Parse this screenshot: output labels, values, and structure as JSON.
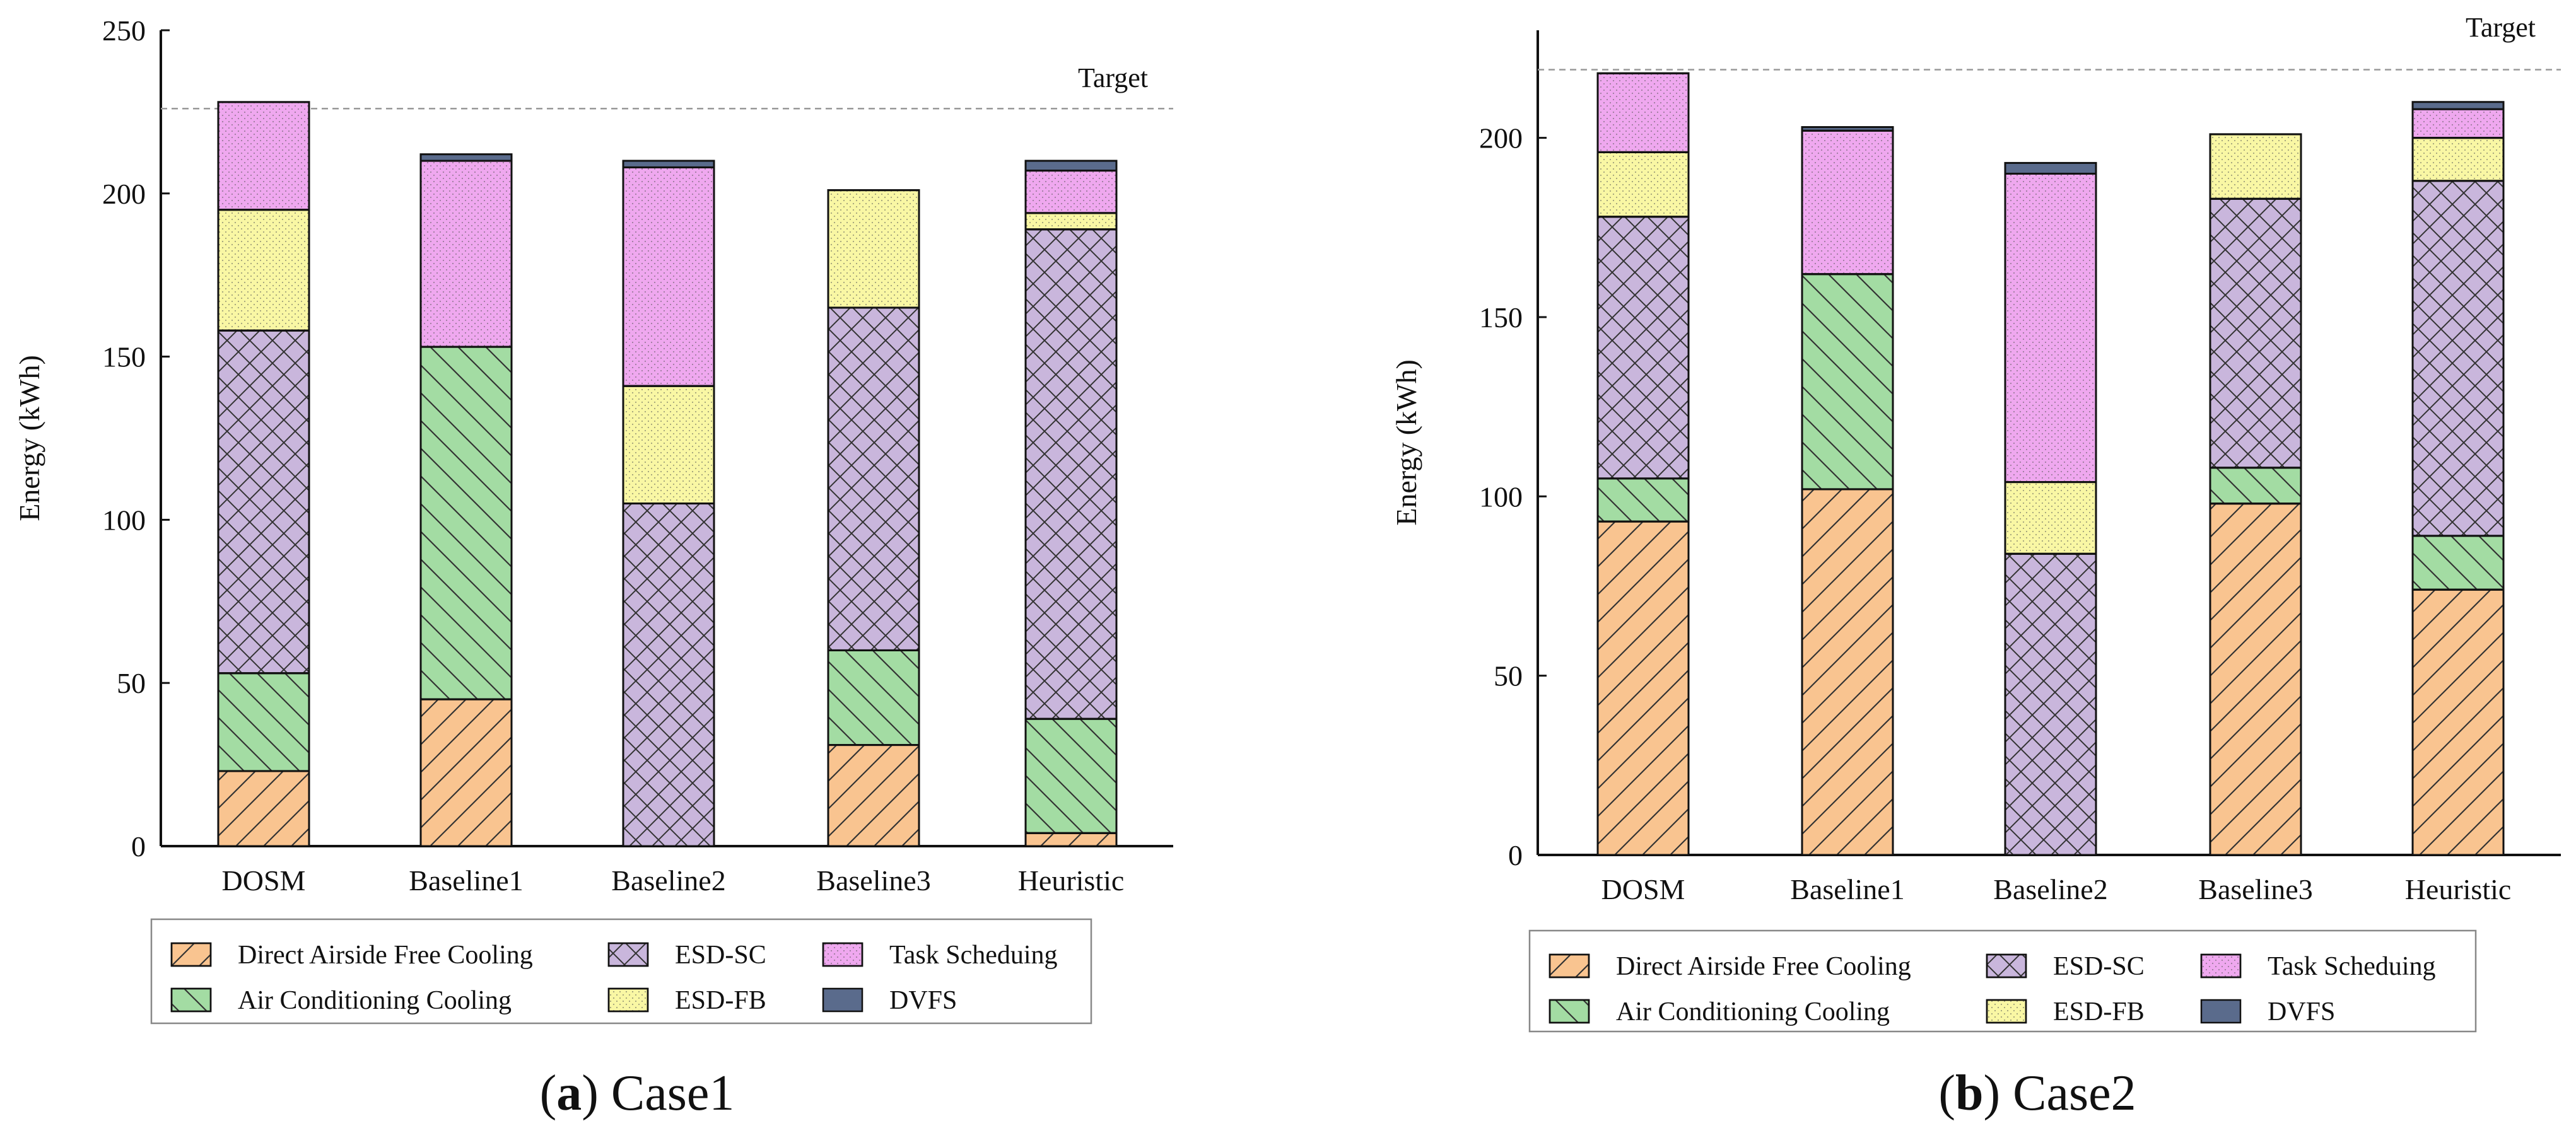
{
  "series_styles": [
    {
      "name": "Direct Airside Free Cooling",
      "color": "#F9C490",
      "pattern": "diag-right"
    },
    {
      "name": "Air Conditioning Cooling",
      "color": "#A3DCA3",
      "pattern": "diag-left"
    },
    {
      "name": "ESD-SC",
      "color": "#C9B6DC",
      "pattern": "crosshatch"
    },
    {
      "name": "ESD-FB",
      "color": "#F9F7A4",
      "pattern": "dots"
    },
    {
      "name": "Task Scheduing",
      "color": "#EFA8EF",
      "pattern": "dots"
    },
    {
      "name": "DVFS",
      "color": "#5A6B8C",
      "pattern": "none"
    }
  ],
  "chart_data": [
    {
      "type": "bar",
      "stacked": true,
      "caption_label": "a",
      "caption_text": "Case1",
      "ylabel": "Energy (kWh)",
      "xlabel": "",
      "ylim": [
        0,
        250
      ],
      "yticks": [
        0,
        50,
        100,
        150,
        200,
        250
      ],
      "target_value": 226,
      "target_label": "Target",
      "categories": [
        "DOSM",
        "Baseline1",
        "Baseline2",
        "Baseline3",
        "Heuristic"
      ],
      "series": [
        {
          "name": "Direct Airside Free Cooling",
          "values": [
            23,
            45,
            0,
            31,
            4
          ]
        },
        {
          "name": "Air Conditioning Cooling",
          "values": [
            30,
            108,
            0,
            29,
            35
          ]
        },
        {
          "name": "ESD-SC",
          "values": [
            105,
            0,
            105,
            105,
            150
          ]
        },
        {
          "name": "ESD-FB",
          "values": [
            37,
            0,
            36,
            36,
            5
          ]
        },
        {
          "name": "Task Scheduing",
          "values": [
            33,
            57,
            67,
            0,
            13
          ]
        },
        {
          "name": "DVFS",
          "values": [
            0,
            2,
            2,
            0,
            3
          ]
        }
      ]
    },
    {
      "type": "bar",
      "stacked": true,
      "caption_label": "b",
      "caption_text": "Case2",
      "ylabel": "Energy (kWh)",
      "xlabel": "",
      "ylim": [
        0,
        230
      ],
      "yticks": [
        0,
        50,
        100,
        150,
        200
      ],
      "target_value": 219,
      "target_label": "Target",
      "categories": [
        "DOSM",
        "Baseline1",
        "Baseline2",
        "Baseline3",
        "Heuristic"
      ],
      "series": [
        {
          "name": "Direct Airside Free Cooling",
          "values": [
            93,
            102,
            0,
            98,
            74
          ]
        },
        {
          "name": "Air Conditioning Cooling",
          "values": [
            12,
            60,
            0,
            10,
            15
          ]
        },
        {
          "name": "ESD-SC",
          "values": [
            73,
            0,
            84,
            75,
            99
          ]
        },
        {
          "name": "ESD-FB",
          "values": [
            18,
            0,
            20,
            18,
            12
          ]
        },
        {
          "name": "Task Scheduing",
          "values": [
            22,
            40,
            86,
            0,
            8
          ]
        },
        {
          "name": "DVFS",
          "values": [
            0,
            1,
            3,
            0,
            2
          ]
        }
      ]
    }
  ]
}
